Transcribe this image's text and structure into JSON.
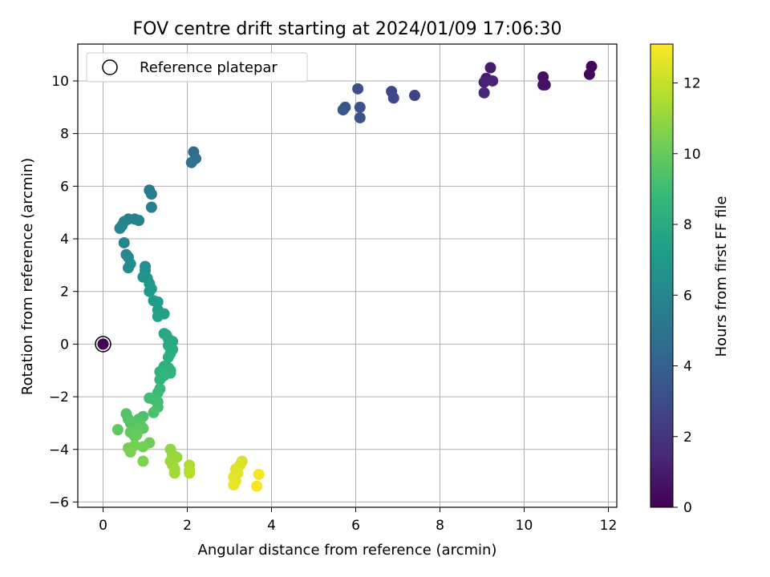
{
  "chart_data": {
    "type": "scatter",
    "title": "FOV centre drift starting at 2024/01/09 17:06:30",
    "xlabel": "Angular distance from reference (arcmin)",
    "ylabel": "Rotation from reference (arcmin)",
    "xlim": [
      -0.6,
      12.2
    ],
    "ylim": [
      -6.2,
      11.4
    ],
    "xticks": [
      0,
      2,
      4,
      6,
      8,
      10,
      12
    ],
    "yticks": [
      -6,
      -4,
      -2,
      0,
      2,
      4,
      6,
      8,
      10
    ],
    "grid": true,
    "colormap": "viridis",
    "colorbar": {
      "label": "Hours from first FF file",
      "range": [
        0,
        13.1
      ],
      "ticks": [
        0,
        2,
        4,
        6,
        8,
        10,
        12
      ]
    },
    "legend": {
      "position": "top-left",
      "entries": [
        "Reference platepar"
      ]
    },
    "reference_point": {
      "x": 0,
      "y": 0
    },
    "series": [
      {
        "points": [
          {
            "x": 0.0,
            "y": 0.0,
            "h": 0.05
          },
          {
            "x": 11.6,
            "y": 10.55,
            "h": 0.2
          },
          {
            "x": 11.55,
            "y": 10.25,
            "h": 0.3
          },
          {
            "x": 10.45,
            "y": 10.15,
            "h": 0.5
          },
          {
            "x": 10.5,
            "y": 9.85,
            "h": 0.6
          },
          {
            "x": 10.45,
            "y": 9.85,
            "h": 0.65
          },
          {
            "x": 9.2,
            "y": 10.5,
            "h": 1.0
          },
          {
            "x": 9.1,
            "y": 10.1,
            "h": 1.1
          },
          {
            "x": 9.05,
            "y": 9.95,
            "h": 1.2
          },
          {
            "x": 9.25,
            "y": 10.0,
            "h": 1.3
          },
          {
            "x": 9.05,
            "y": 9.55,
            "h": 1.4
          },
          {
            "x": 7.4,
            "y": 9.45,
            "h": 2.6
          },
          {
            "x": 6.85,
            "y": 9.6,
            "h": 2.8
          },
          {
            "x": 6.9,
            "y": 9.35,
            "h": 2.9
          },
          {
            "x": 6.05,
            "y": 9.7,
            "h": 3.2
          },
          {
            "x": 6.1,
            "y": 9.0,
            "h": 3.3
          },
          {
            "x": 6.1,
            "y": 8.6,
            "h": 3.4
          },
          {
            "x": 5.75,
            "y": 9.0,
            "h": 3.5
          },
          {
            "x": 5.7,
            "y": 8.9,
            "h": 3.6
          },
          {
            "x": 2.15,
            "y": 7.3,
            "h": 4.7
          },
          {
            "x": 2.2,
            "y": 7.05,
            "h": 4.8
          },
          {
            "x": 2.1,
            "y": 6.9,
            "h": 4.9
          },
          {
            "x": 1.1,
            "y": 5.85,
            "h": 5.4
          },
          {
            "x": 1.15,
            "y": 5.7,
            "h": 5.5
          },
          {
            "x": 1.15,
            "y": 5.2,
            "h": 5.6
          },
          {
            "x": 0.6,
            "y": 4.75,
            "h": 5.7
          },
          {
            "x": 0.75,
            "y": 4.75,
            "h": 5.8
          },
          {
            "x": 0.85,
            "y": 4.7,
            "h": 5.85
          },
          {
            "x": 0.5,
            "y": 4.65,
            "h": 5.9
          },
          {
            "x": 0.45,
            "y": 4.5,
            "h": 5.95
          },
          {
            "x": 0.4,
            "y": 4.4,
            "h": 6.0
          },
          {
            "x": 0.5,
            "y": 3.85,
            "h": 6.1
          },
          {
            "x": 0.55,
            "y": 3.4,
            "h": 6.2
          },
          {
            "x": 0.6,
            "y": 3.3,
            "h": 6.25
          },
          {
            "x": 0.65,
            "y": 3.05,
            "h": 6.3
          },
          {
            "x": 0.6,
            "y": 2.9,
            "h": 6.35
          },
          {
            "x": 1.0,
            "y": 2.95,
            "h": 6.5
          },
          {
            "x": 1.0,
            "y": 2.8,
            "h": 6.6
          },
          {
            "x": 0.95,
            "y": 2.55,
            "h": 6.7
          },
          {
            "x": 1.05,
            "y": 2.5,
            "h": 6.8
          },
          {
            "x": 1.1,
            "y": 2.3,
            "h": 6.9
          },
          {
            "x": 1.15,
            "y": 2.1,
            "h": 7.0
          },
          {
            "x": 1.1,
            "y": 2.0,
            "h": 7.1
          },
          {
            "x": 1.2,
            "y": 1.65,
            "h": 7.2
          },
          {
            "x": 1.3,
            "y": 1.6,
            "h": 7.3
          },
          {
            "x": 1.3,
            "y": 1.3,
            "h": 7.35
          },
          {
            "x": 1.35,
            "y": 1.15,
            "h": 7.4
          },
          {
            "x": 1.45,
            "y": 1.15,
            "h": 7.45
          },
          {
            "x": 1.3,
            "y": 1.05,
            "h": 7.5
          },
          {
            "x": 1.45,
            "y": 0.4,
            "h": 7.7
          },
          {
            "x": 1.5,
            "y": 0.35,
            "h": 7.8
          },
          {
            "x": 1.55,
            "y": 0.2,
            "h": 7.85
          },
          {
            "x": 1.65,
            "y": 0.1,
            "h": 7.9
          },
          {
            "x": 1.55,
            "y": -0.05,
            "h": 8.0
          },
          {
            "x": 1.65,
            "y": -0.2,
            "h": 8.05
          },
          {
            "x": 1.6,
            "y": -0.35,
            "h": 8.1
          },
          {
            "x": 1.55,
            "y": -0.5,
            "h": 8.2
          },
          {
            "x": 1.45,
            "y": -0.85,
            "h": 8.3
          },
          {
            "x": 1.55,
            "y": -0.9,
            "h": 8.35
          },
          {
            "x": 1.6,
            "y": -1.0,
            "h": 8.4
          },
          {
            "x": 1.35,
            "y": -1.05,
            "h": 8.45
          },
          {
            "x": 1.6,
            "y": -1.1,
            "h": 8.5
          },
          {
            "x": 1.45,
            "y": -1.2,
            "h": 8.55
          },
          {
            "x": 1.35,
            "y": -1.35,
            "h": 8.6
          },
          {
            "x": 1.35,
            "y": -1.7,
            "h": 8.8
          },
          {
            "x": 1.3,
            "y": -1.85,
            "h": 8.9
          },
          {
            "x": 1.25,
            "y": -2.0,
            "h": 9.0
          },
          {
            "x": 1.1,
            "y": -2.05,
            "h": 9.05
          },
          {
            "x": 1.2,
            "y": -2.1,
            "h": 9.1
          },
          {
            "x": 1.3,
            "y": -2.2,
            "h": 9.15
          },
          {
            "x": 1.3,
            "y": -2.4,
            "h": 9.2
          },
          {
            "x": 1.2,
            "y": -2.6,
            "h": 9.3
          },
          {
            "x": 0.95,
            "y": -2.75,
            "h": 9.4
          },
          {
            "x": 0.85,
            "y": -2.85,
            "h": 9.45
          },
          {
            "x": 0.55,
            "y": -2.65,
            "h": 9.5
          },
          {
            "x": 0.6,
            "y": -2.85,
            "h": 9.55
          },
          {
            "x": 0.65,
            "y": -3.0,
            "h": 9.6
          },
          {
            "x": 0.75,
            "y": -3.05,
            "h": 9.65
          },
          {
            "x": 0.9,
            "y": -3.1,
            "h": 9.7
          },
          {
            "x": 0.95,
            "y": -3.2,
            "h": 9.75
          },
          {
            "x": 0.85,
            "y": -3.25,
            "h": 9.8
          },
          {
            "x": 0.35,
            "y": -3.25,
            "h": 9.85
          },
          {
            "x": 0.65,
            "y": -3.35,
            "h": 9.9
          },
          {
            "x": 0.75,
            "y": -3.5,
            "h": 9.95
          },
          {
            "x": 0.8,
            "y": -3.45,
            "h": 10.0
          },
          {
            "x": 1.1,
            "y": -3.75,
            "h": 10.2
          },
          {
            "x": 0.95,
            "y": -3.9,
            "h": 10.3
          },
          {
            "x": 0.75,
            "y": -3.85,
            "h": 10.35
          },
          {
            "x": 0.6,
            "y": -3.95,
            "h": 10.4
          },
          {
            "x": 0.65,
            "y": -4.1,
            "h": 10.45
          },
          {
            "x": 0.95,
            "y": -4.45,
            "h": 10.5
          },
          {
            "x": 1.6,
            "y": -4.0,
            "h": 10.9
          },
          {
            "x": 1.65,
            "y": -4.2,
            "h": 11.0
          },
          {
            "x": 1.75,
            "y": -4.3,
            "h": 11.05
          },
          {
            "x": 1.6,
            "y": -4.45,
            "h": 11.1
          },
          {
            "x": 1.65,
            "y": -4.6,
            "h": 11.2
          },
          {
            "x": 1.7,
            "y": -4.75,
            "h": 11.25
          },
          {
            "x": 1.7,
            "y": -4.9,
            "h": 11.3
          },
          {
            "x": 2.05,
            "y": -4.6,
            "h": 11.5
          },
          {
            "x": 2.05,
            "y": -4.8,
            "h": 11.6
          },
          {
            "x": 2.05,
            "y": -4.9,
            "h": 11.65
          },
          {
            "x": 3.3,
            "y": -4.45,
            "h": 12.3
          },
          {
            "x": 3.25,
            "y": -4.6,
            "h": 12.4
          },
          {
            "x": 3.15,
            "y": -4.75,
            "h": 12.5
          },
          {
            "x": 3.2,
            "y": -4.9,
            "h": 12.55
          },
          {
            "x": 3.1,
            "y": -5.05,
            "h": 12.6
          },
          {
            "x": 3.15,
            "y": -5.2,
            "h": 12.65
          },
          {
            "x": 3.1,
            "y": -5.35,
            "h": 12.7
          },
          {
            "x": 3.7,
            "y": -4.95,
            "h": 12.9
          },
          {
            "x": 3.65,
            "y": -5.4,
            "h": 13.0
          }
        ]
      }
    ]
  }
}
